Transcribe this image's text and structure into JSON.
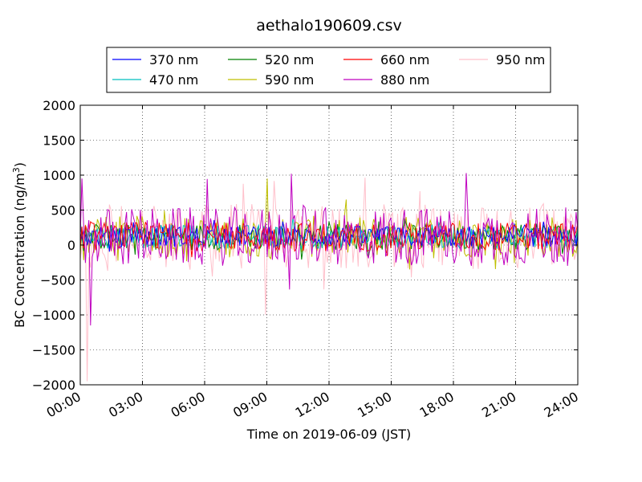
{
  "chart_data": {
    "type": "line",
    "title": "aethalo190609.csv",
    "xlabel": "Time on 2019-06-09 (JST)",
    "ylabel_prefix": "BC Concentration (ng/m",
    "ylabel_exp": "3",
    "ylabel_suffix": ")",
    "x_ticks": [
      "00:00",
      "03:00",
      "06:00",
      "09:00",
      "12:00",
      "15:00",
      "18:00",
      "21:00",
      "24:00"
    ],
    "y_ticks": [
      "2000",
      "1500",
      "1000",
      "500",
      "0",
      "−500",
      "−1000",
      "−1500",
      "−2000"
    ],
    "xlim_hours": [
      0,
      24
    ],
    "ylim": [
      -2000,
      2000
    ],
    "grid": true,
    "legend_position": "top-center, above plot",
    "series": [
      {
        "name": "370 nm",
        "color": "#0000ff",
        "amplitude": 150
      },
      {
        "name": "470 nm",
        "color": "#00bfbf",
        "amplitude": 170
      },
      {
        "name": "520 nm",
        "color": "#008000",
        "amplitude": 190
      },
      {
        "name": "590 nm",
        "color": "#bfbf00",
        "amplitude": 300
      },
      {
        "name": "660 nm",
        "color": "#ff0000",
        "amplitude": 210
      },
      {
        "name": "880 nm",
        "color": "#bf00bf",
        "amplitude": 420
      },
      {
        "name": "950 nm",
        "color": "#ffc0cb",
        "amplitude": 480
      }
    ],
    "notable_points": [
      {
        "series": "950 nm",
        "hour": 0.3,
        "value": -1950
      },
      {
        "series": "880 nm",
        "hour": 0.5,
        "value": -1150
      },
      {
        "series": "880 nm",
        "hour": 0.1,
        "value": 950
      },
      {
        "series": "880 nm",
        "hour": 10.2,
        "value": 1020
      },
      {
        "series": "880 nm",
        "hour": 18.6,
        "value": 1030
      },
      {
        "series": "590 nm",
        "hour": 9.0,
        "value": 950
      },
      {
        "series": "950 nm",
        "hour": 8.9,
        "value": -1000
      }
    ]
  }
}
